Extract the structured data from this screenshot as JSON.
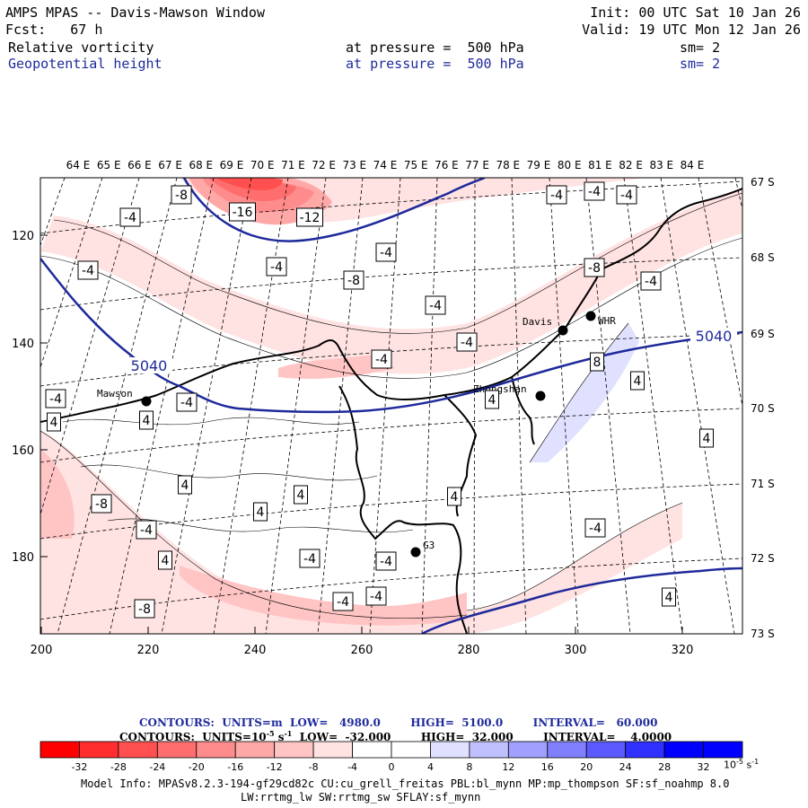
{
  "header": {
    "title": "AMPS MPAS -- Davis-Mawson Window",
    "fcst": "Fcst:   67 h",
    "init": "Init: 00 UTC Sat 10 Jan 26",
    "valid": "Valid: 19 UTC Mon 12 Jan 26",
    "field1": {
      "name": "Relative vorticity",
      "pressure": "at pressure =  500 hPa",
      "sm": "sm= 2"
    },
    "field2": {
      "name": "Geopotential height",
      "pressure": "at pressure =  500 hPa",
      "sm": "sm= 2"
    }
  },
  "map": {
    "lon_labels": [
      "64 E",
      "65 E",
      "66 E",
      "67 E",
      "68 E",
      "69 E",
      "70 E",
      "71 E",
      "72 E",
      "73 E",
      "74 E",
      "75 E",
      "76 E",
      "77 E",
      "78 E",
      "79 E",
      "80 E",
      "81 E",
      "82 E",
      "83 E",
      "84 E"
    ],
    "lat_labels": [
      "67 S",
      "68 S",
      "69 S",
      "70 S",
      "71 S",
      "72 S",
      "73 S"
    ],
    "x_ticks": [
      "200",
      "220",
      "240",
      "260",
      "280",
      "300",
      "320"
    ],
    "y_ticks": [
      "120",
      "140",
      "160",
      "180"
    ],
    "stations": [
      {
        "name": "Mawson",
        "x": 163,
        "y": 447
      },
      {
        "name": "Davis",
        "x": 627,
        "y": 368
      },
      {
        "name": "WHR",
        "x": 658,
        "y": 352
      },
      {
        "name": "Zhongshan",
        "x": 602,
        "y": 441
      },
      {
        "name": "G3",
        "x": 463,
        "y": 615
      }
    ],
    "height_labels": [
      "5040",
      "5040"
    ],
    "vort_labels": [
      "-8",
      "-4",
      "-16",
      "-12",
      "-4",
      "-4",
      "-4",
      "-8",
      "-4",
      "-4",
      "-4",
      "-4",
      "-4",
      "-4",
      "-8",
      "-4",
      "-4",
      "8",
      "4",
      "-4",
      "4",
      "4",
      "4",
      "-8",
      "4",
      "4",
      "4",
      "-4",
      "-4",
      "4",
      "-4",
      "-4",
      "-4",
      "-8",
      "4",
      "4",
      "4",
      "-4"
    ]
  },
  "colorbar": {
    "ticks": [
      "-32",
      "-28",
      "-24",
      "-20",
      "-16",
      "-12",
      "-8",
      "-4",
      "0",
      "4",
      "8",
      "12",
      "16",
      "20",
      "24",
      "28",
      "32"
    ],
    "colors": [
      "#ff0000",
      "#ff2d2d",
      "#ff4f4f",
      "#ff6e6e",
      "#ff8c8c",
      "#ffa8a8",
      "#ffc4c4",
      "#ffe2e2",
      "#ffffff",
      "#ffffff",
      "#e0e0ff",
      "#c0c0ff",
      "#a0a0ff",
      "#8080ff",
      "#5a5aff",
      "#3030ff",
      "#0000ff"
    ],
    "units": "10",
    "units_exp": "-5",
    "units_suffix": "s"
  },
  "contours1": {
    "text": "CONTOURS:  UNITS=m  LOW=   4980.0        HIGH=  5100.0        INTERVAL=   60.000"
  },
  "contours2": {
    "text": "CONTOURS:  UNITS=10",
    "exp": "-5",
    "rest": " s",
    "rest_exp": "-1",
    "tail": "  LOW=  -32.000        HIGH=  32.000        INTERVAL=    4.0000"
  },
  "model_info": {
    "line1": "Model Info: MPASv8.2.3-194-gf29cd82c CU:cu_grell_freitas PBL:bl_mynn MP:mp_thompson SF:sf_noahmp 8.0",
    "line2": "LW:rrtmg_lw SW:rrtmg_sw SFLAY:sf_mynn"
  }
}
